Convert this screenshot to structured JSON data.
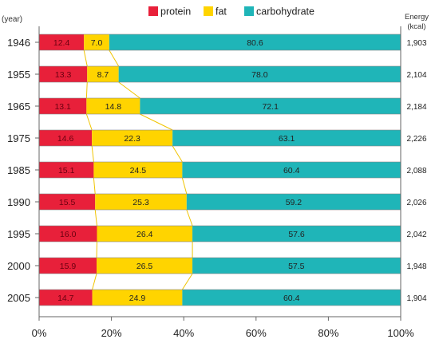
{
  "chart_data": {
    "type": "bar",
    "stacked": true,
    "percent_axis": true,
    "legend_placement": "top",
    "year_label": "(year)",
    "energy_label": [
      "Energy",
      "(kcal)"
    ],
    "categories": [
      "1946",
      "1955",
      "1965",
      "1975",
      "1985",
      "1990",
      "1995",
      "2000",
      "2005"
    ],
    "series": [
      {
        "name": "protein",
        "color": "#e8203a",
        "values": [
          12.4,
          13.3,
          13.1,
          14.6,
          15.1,
          15.5,
          16.0,
          15.9,
          14.7
        ],
        "labels": [
          "12.4",
          "13.3",
          "13.1",
          "14.6",
          "15.1",
          "15.5",
          "16.0",
          "15.9",
          "14.7"
        ]
      },
      {
        "name": "fat",
        "color": "#ffd400",
        "values": [
          7.0,
          8.7,
          14.8,
          22.3,
          24.5,
          25.3,
          26.4,
          26.5,
          24.9
        ],
        "labels": [
          "7.0",
          "8.7",
          "14.8",
          "22.3",
          "24.5",
          "25.3",
          "26.4",
          "26.5",
          "24.9"
        ]
      },
      {
        "name": "carbohydrate",
        "color": "#1fb5b8",
        "values": [
          80.6,
          78.0,
          72.1,
          63.1,
          60.4,
          59.2,
          57.6,
          57.5,
          60.4
        ],
        "labels": [
          "80.6",
          "78.0",
          "72.1",
          "63.1",
          "60.4",
          "59.2",
          "57.6",
          "57.5",
          "60.4"
        ]
      }
    ],
    "energy": [
      "1,903",
      "2,104",
      "2,184",
      "2,226",
      "2,088",
      "2,026",
      "2,042",
      "1,948",
      "1,904"
    ],
    "xlim": [
      0,
      100
    ],
    "xticks": [
      0,
      20,
      40,
      60,
      80,
      100
    ],
    "xtick_labels": [
      "0%",
      "20%",
      "40%",
      "60%",
      "80%",
      "100%"
    ],
    "grid": false
  }
}
